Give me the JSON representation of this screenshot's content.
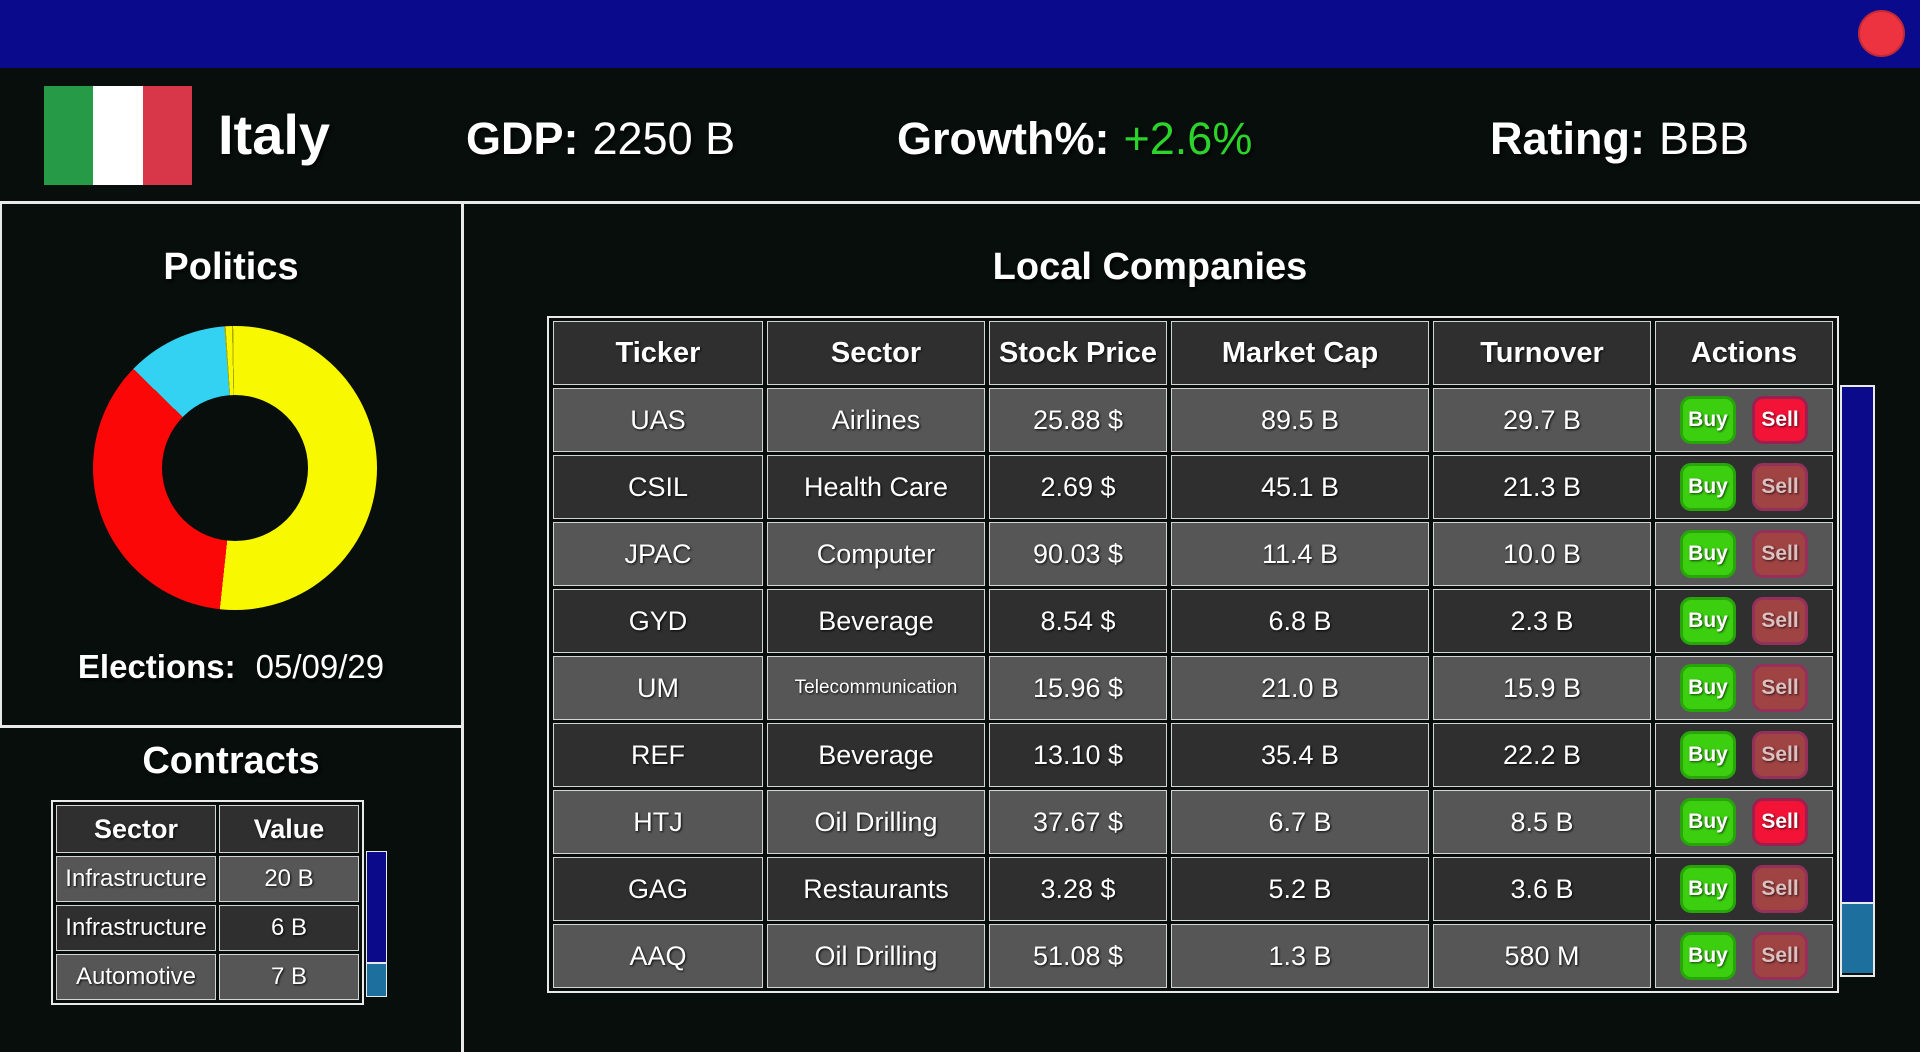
{
  "window": {
    "titlebar_color": "#0a0a8c",
    "close_button_color": "#ee3340"
  },
  "country": {
    "name": "Italy",
    "gdp_label": "GDP:",
    "gdp_value": "2250 B",
    "growth_label": "Growth%:",
    "growth_value": "+2.6%",
    "rating_label": "Rating:",
    "rating_value": "BBB"
  },
  "politics": {
    "title": "Politics",
    "elections_label": "Elections:",
    "elections_date": "05/09/29"
  },
  "chart_data": {
    "type": "pie",
    "style": "donut",
    "title": "Politics",
    "legend": false,
    "slices": [
      {
        "label": "yellow-party",
        "percent": 51.7,
        "color": "#f8f800"
      },
      {
        "label": "red-party",
        "percent": 35.6,
        "color": "#fb0707"
      },
      {
        "label": "cyan-party",
        "percent": 11.5,
        "color": "#33d2f2"
      },
      {
        "label": "divider-1",
        "percent": 0.15,
        "color": "#a9a900"
      },
      {
        "label": "yellow-sliver-1",
        "percent": 0.7,
        "color": "#f8f800"
      },
      {
        "label": "divider-2",
        "percent": 0.15,
        "color": "#a9a900"
      },
      {
        "label": "yellow-sliver-2",
        "percent": 0.2,
        "color": "#f8f800"
      }
    ]
  },
  "contracts": {
    "title": "Contracts",
    "columns": [
      "Sector",
      "Value"
    ],
    "rows": [
      {
        "sector": "Infrastructure",
        "value": "20 B"
      },
      {
        "sector": "Infrastructure",
        "value": "6 B"
      },
      {
        "sector": "Automotive",
        "value": "7 B"
      }
    ]
  },
  "companies": {
    "title": "Local Companies",
    "columns": [
      "Ticker",
      "Sector",
      "Stock Price",
      "Market Cap",
      "Turnover",
      "Actions"
    ],
    "buy_label": "Buy",
    "sell_label": "Sell",
    "rows": [
      {
        "ticker": "UAS",
        "sector": "Airlines",
        "price": "25.88 $",
        "cap": "89.5 B",
        "turnover": "29.7 B",
        "sell_active": true
      },
      {
        "ticker": "CSIL",
        "sector": "Health Care",
        "price": "2.69 $",
        "cap": "45.1 B",
        "turnover": "21.3 B",
        "sell_active": false
      },
      {
        "ticker": "JPAC",
        "sector": "Computer",
        "price": "90.03 $",
        "cap": "11.4 B",
        "turnover": "10.0 B",
        "sell_active": false
      },
      {
        "ticker": "GYD",
        "sector": "Beverage",
        "price": "8.54 $",
        "cap": "6.8 B",
        "turnover": "2.3 B",
        "sell_active": false
      },
      {
        "ticker": "UM",
        "sector": "Telecommunication",
        "price": "15.96 $",
        "cap": "21.0 B",
        "turnover": "15.9 B",
        "sell_active": false
      },
      {
        "ticker": "REF",
        "sector": "Beverage",
        "price": "13.10 $",
        "cap": "35.4 B",
        "turnover": "22.2 B",
        "sell_active": false
      },
      {
        "ticker": "HTJ",
        "sector": "Oil Drilling",
        "price": "37.67 $",
        "cap": "6.7 B",
        "turnover": "8.5 B",
        "sell_active": true
      },
      {
        "ticker": "GAG",
        "sector": "Restaurants",
        "price": "3.28 $",
        "cap": "5.2 B",
        "turnover": "3.6 B",
        "sell_active": false
      },
      {
        "ticker": "AAQ",
        "sector": "Oil Drilling",
        "price": "51.08 $",
        "cap": "1.3 B",
        "turnover": "580 M",
        "sell_active": false
      }
    ]
  },
  "theme": {
    "page_bg": "#070e0b",
    "titlebar_blue": "#0a0a8c",
    "close_red": "#ee3340",
    "growth_green": "#2bd32b",
    "row_light": "#565656",
    "row_dark": "#2f2f2f",
    "border_white": "#e9e9e9",
    "scrollbar_navy": "#0a0a8a",
    "scrollbar_teal": "#1d6f9e",
    "buy_green": "#3bcf10",
    "buy_green_border": "#27a509",
    "sell_red": "#f31337",
    "sell_red_border": "#99204f",
    "sell_muted": "#a04343",
    "sell_muted_border": "#94305a",
    "sell_muted_text": "#dfc0c0",
    "flag_green": "#279a47",
    "flag_white": "#ffffff",
    "flag_red": "#d8374a"
  }
}
